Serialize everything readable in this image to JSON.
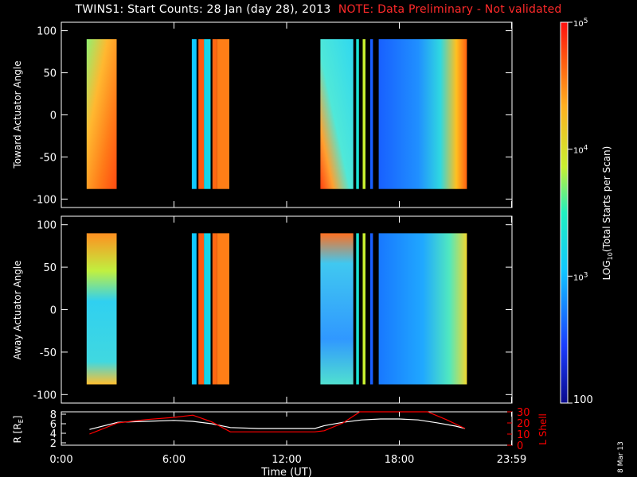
{
  "title": {
    "main": "TWINS1: Start Counts: 28 Jan (day  28), 2013",
    "note": "NOTE: Data Preliminary - Not validated"
  },
  "stamp": "8 Mar 13",
  "colors": {
    "note": "#ff2a2a",
    "r_line": "#ffffff",
    "l_shell_line": "#ff0000",
    "frame": "#ffffff"
  },
  "chart_data": [
    {
      "type": "heatmap",
      "ylabel": "Toward Actuator Angle",
      "ylim": [
        -110,
        110
      ],
      "yticks": [
        100,
        50,
        0,
        -50,
        -100
      ],
      "xlim_hours": [
        0,
        24
      ],
      "data_range_deg": [
        -88,
        90
      ],
      "colorscale": "log counts (blue low to red high)",
      "segments": [
        {
          "start_h": 1.35,
          "end_h": 2.95,
          "level": 0.86,
          "pattern": "top-green-bottom-red"
        },
        {
          "start_h": 6.95,
          "end_h": 7.2,
          "level": 0.35
        },
        {
          "start_h": 7.3,
          "end_h": 7.6,
          "level": 0.9
        },
        {
          "start_h": 7.6,
          "end_h": 7.95,
          "level": 0.4
        },
        {
          "start_h": 8.05,
          "end_h": 8.3,
          "level": 0.88
        },
        {
          "start_h": 8.3,
          "end_h": 8.95,
          "level": 0.85
        },
        {
          "start_h": 13.8,
          "end_h": 15.55,
          "level": 0.72,
          "pattern": "cyan-with-red-corner"
        },
        {
          "start_h": 15.7,
          "end_h": 15.85,
          "level": 0.45
        },
        {
          "start_h": 16.05,
          "end_h": 16.2,
          "level": 0.62
        },
        {
          "start_h": 16.45,
          "end_h": 16.6,
          "level": 0.2
        },
        {
          "start_h": 16.9,
          "end_h": 21.6,
          "level": 0.35,
          "pattern": "blue-to-red-right"
        }
      ]
    },
    {
      "type": "heatmap",
      "ylabel": "Away Actuator Angle",
      "ylim": [
        -110,
        110
      ],
      "yticks": [
        100,
        50,
        0,
        -50,
        -100
      ],
      "xlim_hours": [
        0,
        24
      ],
      "data_range_deg": [
        -88,
        90
      ],
      "colorscale": "log counts (blue low to red high)",
      "segments": [
        {
          "start_h": 1.35,
          "end_h": 2.95,
          "level": 0.45,
          "pattern": "red-top-cyan-middle"
        },
        {
          "start_h": 6.95,
          "end_h": 7.2,
          "level": 0.35
        },
        {
          "start_h": 7.3,
          "end_h": 7.6,
          "level": 0.9
        },
        {
          "start_h": 7.6,
          "end_h": 7.95,
          "level": 0.4
        },
        {
          "start_h": 8.05,
          "end_h": 8.3,
          "level": 0.88
        },
        {
          "start_h": 8.3,
          "end_h": 8.95,
          "level": 0.85
        },
        {
          "start_h": 13.8,
          "end_h": 15.55,
          "level": 0.5,
          "pattern": "red-top-cyan-body"
        },
        {
          "start_h": 15.7,
          "end_h": 15.85,
          "level": 0.45
        },
        {
          "start_h": 16.05,
          "end_h": 16.2,
          "level": 0.62
        },
        {
          "start_h": 16.45,
          "end_h": 16.6,
          "level": 0.2
        },
        {
          "start_h": 16.9,
          "end_h": 21.6,
          "level": 0.32,
          "pattern": "blue-to-yellow-right"
        }
      ]
    },
    {
      "type": "line",
      "ylabel_left": "R [R",
      "ylabel_left_sub": "E",
      "ylabel_left_end": "]",
      "ylim_left": [
        1.5,
        8.5
      ],
      "yticks_left": [
        8,
        6,
        4,
        2
      ],
      "ylabel_right": "L Shell",
      "ylim_right": [
        0,
        30
      ],
      "yticks_right": [
        30,
        20,
        10,
        0
      ],
      "xlabel": "Time (UT)",
      "xticks": [
        "0:00",
        "6:00",
        "12:00",
        "18:00",
        "23:59"
      ],
      "xtick_hours": [
        0,
        6,
        12,
        18,
        23.98
      ],
      "series": [
        {
          "axis": "left",
          "x": [
            1.5,
            3,
            4.5,
            6,
            7,
            8,
            9,
            10.5,
            12,
            13.5,
            14,
            15,
            16,
            17,
            18,
            19,
            20,
            21,
            21.5
          ],
          "y": [
            4.8,
            6.3,
            6.5,
            6.7,
            6.5,
            6.0,
            5.2,
            5.0,
            5.0,
            5.0,
            5.6,
            6.3,
            6.8,
            7.0,
            7.0,
            6.8,
            6.2,
            5.5,
            5.0
          ]
        },
        {
          "axis": "right",
          "x": [
            1.5,
            3,
            4.5,
            6,
            7,
            8,
            9,
            10.5,
            12,
            13.5,
            14,
            15,
            15.9,
            19.5,
            20.5,
            21.5
          ],
          "y": [
            10,
            20,
            23,
            25,
            27,
            21,
            12,
            12,
            12,
            12,
            13,
            20,
            31,
            31,
            23,
            15
          ]
        }
      ]
    },
    {
      "type": "colorbar",
      "label": "LOG",
      "label_sub": "10",
      "label_end": "(Total Starts per Scan)",
      "scale": "log",
      "range": [
        100,
        100000
      ],
      "ticks": [
        {
          "value": 100000,
          "label": "10",
          "exp": "5"
        },
        {
          "value": 10000,
          "label": "10",
          "exp": "4"
        },
        {
          "value": 1000,
          "label": "10",
          "exp": "3"
        },
        {
          "value": 100,
          "label": "100",
          "exp": ""
        }
      ]
    }
  ]
}
